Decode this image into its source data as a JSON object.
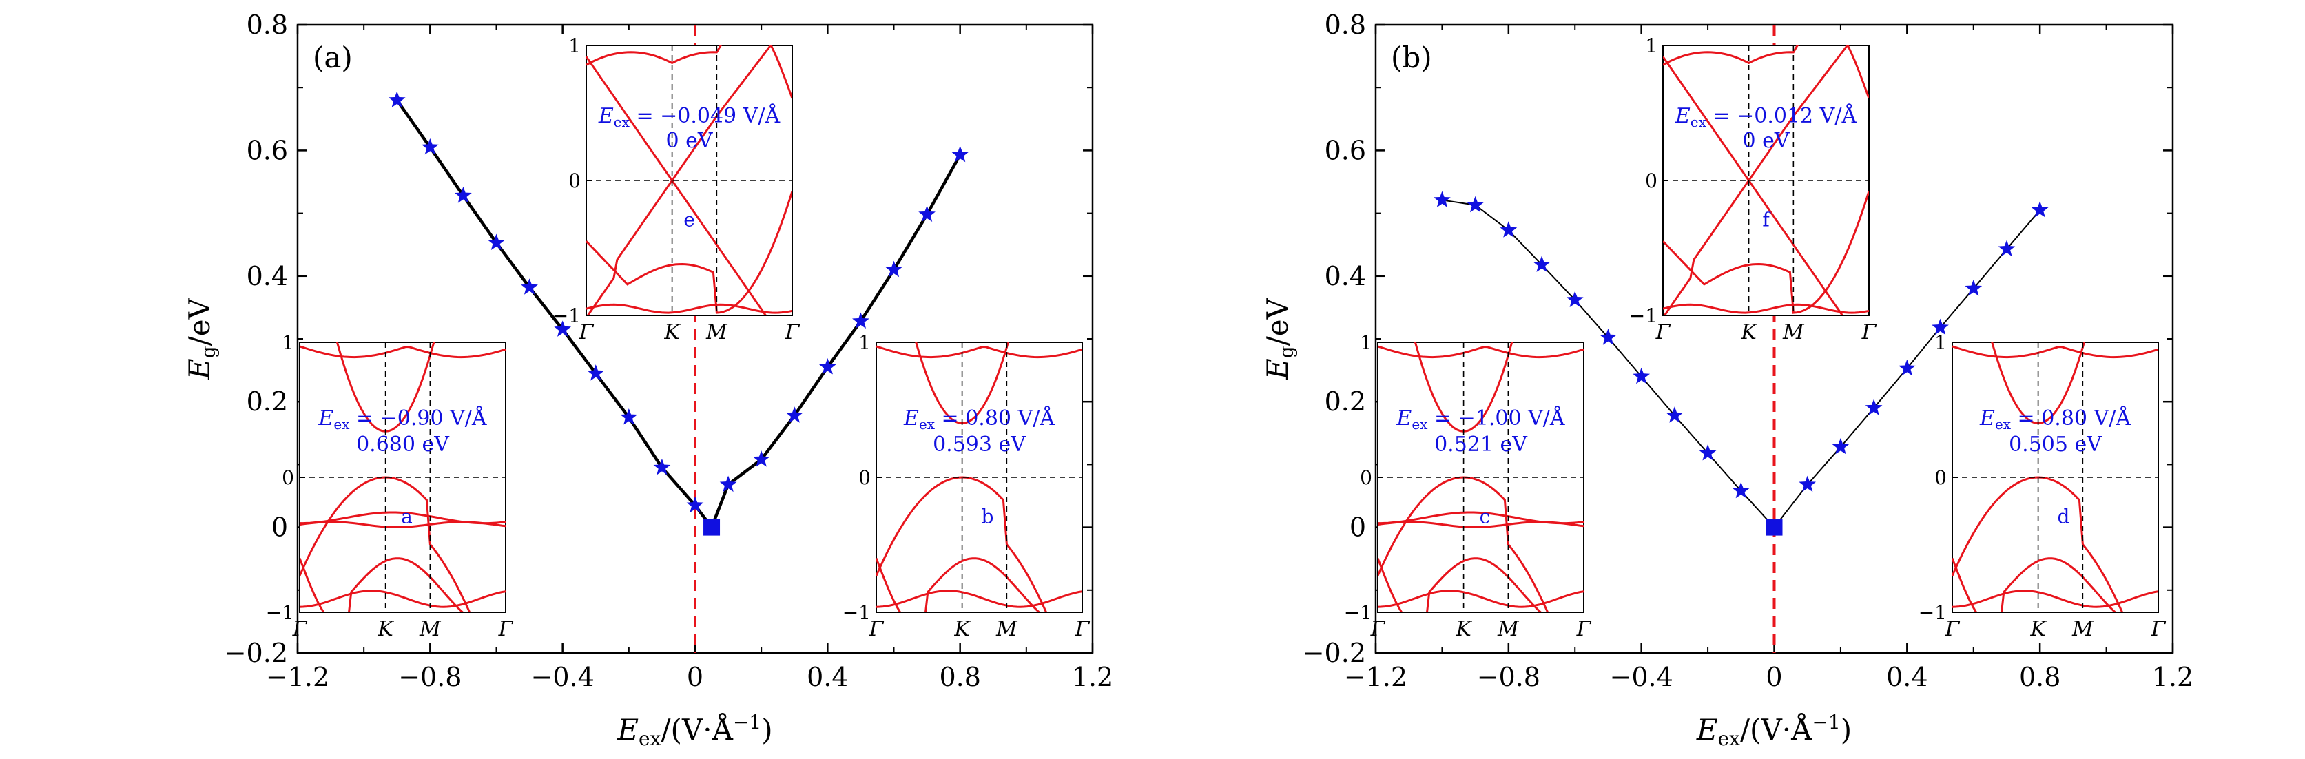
{
  "figure": {
    "xlabel_main": "E",
    "xlabel_sub": "ex",
    "xlabel_unit": "/(V·Å",
    "xlabel_exp": "−1",
    "xlabel_close": ")",
    "ylabel_main": "E",
    "ylabel_sub": "g",
    "ylabel_unit": "/eV"
  },
  "chart_data": [
    {
      "type": "line",
      "panel_label": "(a)",
      "xlim": [
        -1.2,
        1.2
      ],
      "ylim": [
        -0.2,
        0.8
      ],
      "xticks": [
        -1.2,
        -0.8,
        -0.4,
        0,
        0.4,
        0.8,
        1.2
      ],
      "xtick_labels": [
        "−1.2",
        "−0.8",
        "−0.4",
        "0",
        "0.4",
        "0.8",
        "1.2"
      ],
      "yticks": [
        -0.2,
        0,
        0.2,
        0.4,
        0.6,
        0.8
      ],
      "ytick_labels": [
        "−0.2",
        "0",
        "0.2",
        "0.4",
        "0.6",
        "0.8"
      ],
      "line_style": "thick",
      "dashed_vline_x": 0,
      "series": [
        {
          "name": "Eg",
          "color": "#1010e0",
          "x": [
            -0.9,
            -0.8,
            -0.7,
            -0.6,
            -0.5,
            -0.4,
            -0.3,
            -0.2,
            -0.1,
            0.0,
            0.05,
            0.1,
            0.2,
            0.3,
            0.4,
            0.5,
            0.6,
            0.7,
            0.8
          ],
          "y": [
            0.68,
            0.605,
            0.528,
            0.453,
            0.382,
            0.315,
            0.245,
            0.175,
            0.095,
            0.035,
            0.0,
            0.068,
            0.108,
            0.178,
            0.255,
            0.328,
            0.41,
            0.498,
            0.593
          ],
          "markers": [
            "star",
            "star",
            "star",
            "star",
            "star",
            "star",
            "star",
            "star",
            "star",
            "star",
            "square",
            "star",
            "star",
            "star",
            "star",
            "star",
            "star",
            "star",
            "star"
          ]
        }
      ],
      "insets": [
        {
          "field": "E",
          "sub": "ex",
          "value_text": " = −0.049 V/Å",
          "gap_text": "0 eV",
          "tag": "e",
          "yticks": [
            "1",
            "0",
            "−1"
          ],
          "xticks": [
            "Γ",
            "K",
            "M",
            "Γ"
          ]
        },
        {
          "field": "E",
          "sub": "ex",
          "value_text": " = −0.90 V/Å",
          "gap_text": "0.680 eV",
          "tag": "a",
          "yticks": [
            "1",
            "0",
            "−1"
          ],
          "xticks": [
            "Γ",
            "K",
            "M",
            "Γ"
          ]
        },
        {
          "field": "E",
          "sub": "ex",
          "value_text": " = 0.80 V/Å",
          "gap_text": "0.593 eV",
          "tag": "b",
          "yticks": [
            "1",
            "0",
            "−1"
          ],
          "xticks": [
            "Γ",
            "K",
            "M",
            "Γ"
          ]
        }
      ]
    },
    {
      "type": "line",
      "panel_label": "(b)",
      "xlim": [
        -1.2,
        1.2
      ],
      "ylim": [
        -0.2,
        0.8
      ],
      "xticks": [
        -1.2,
        -0.8,
        -0.4,
        0,
        0.4,
        0.8,
        1.2
      ],
      "xtick_labels": [
        "−1.2",
        "−0.8",
        "−0.4",
        "0",
        "0.4",
        "0.8",
        "1.2"
      ],
      "yticks": [
        -0.2,
        0,
        0.2,
        0.4,
        0.6,
        0.8
      ],
      "ytick_labels": [
        "−0.2",
        "0",
        "0.2",
        "0.4",
        "0.6",
        "0.8"
      ],
      "line_style": "thin",
      "dashed_vline_x": 0,
      "series": [
        {
          "name": "Eg",
          "color": "#1010e0",
          "x": [
            -1.0,
            -0.9,
            -0.8,
            -0.7,
            -0.6,
            -0.5,
            -0.4,
            -0.3,
            -0.2,
            -0.1,
            0.0,
            0.1,
            0.2,
            0.3,
            0.4,
            0.5,
            0.6,
            0.7,
            0.8
          ],
          "y": [
            0.521,
            0.513,
            0.473,
            0.418,
            0.362,
            0.302,
            0.24,
            0.178,
            0.118,
            0.058,
            0.0,
            0.068,
            0.128,
            0.19,
            0.253,
            0.318,
            0.38,
            0.443,
            0.505
          ],
          "markers": [
            "star",
            "star",
            "star",
            "star",
            "star",
            "star",
            "star",
            "star",
            "star",
            "star",
            "square",
            "star",
            "star",
            "star",
            "star",
            "star",
            "star",
            "star",
            "star"
          ]
        }
      ],
      "insets": [
        {
          "field": "E",
          "sub": "ex",
          "value_text": " = −0.012 V/Å",
          "gap_text": "0 eV",
          "tag": "f",
          "yticks": [
            "1",
            "0",
            "−1"
          ],
          "xticks": [
            "Γ",
            "K",
            "M",
            "Γ"
          ]
        },
        {
          "field": "E",
          "sub": "ex",
          "value_text": " = −1.00 V/Å",
          "gap_text": "0.521 eV",
          "tag": "c",
          "yticks": [
            "1",
            "0",
            "−1"
          ],
          "xticks": [
            "Γ",
            "K",
            "M",
            "Γ"
          ]
        },
        {
          "field": "E",
          "sub": "ex",
          "value_text": " = 0.80 V/Å",
          "gap_text": "0.505 eV",
          "tag": "d",
          "yticks": [
            "1",
            "0",
            "−1"
          ],
          "xticks": [
            "Γ",
            "K",
            "M",
            "Γ"
          ]
        }
      ]
    }
  ]
}
